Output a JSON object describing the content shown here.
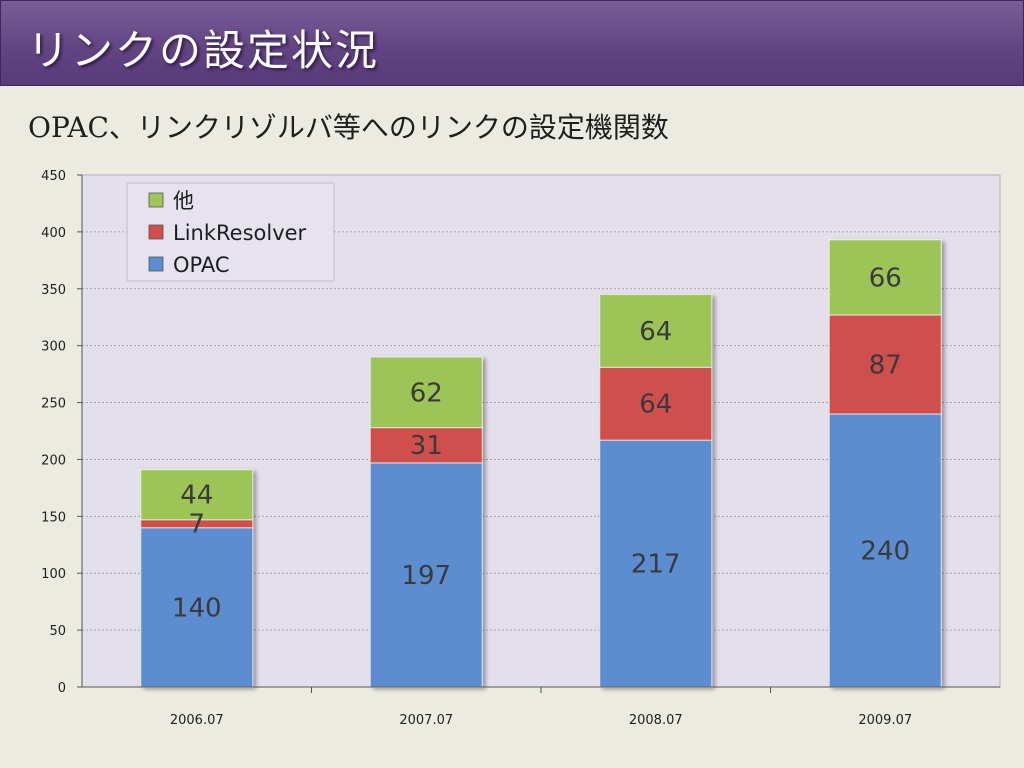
{
  "header": {
    "title": "リンクの設定状況"
  },
  "subtitle": "OPAC、リンクリゾルバ等へのリンクの設定機関数",
  "colors": {
    "OPAC": "#5b8dd1",
    "LinkResolver": "#cf4f4d",
    "other": "#9dc456",
    "plot_background": "#e3dfeb"
  },
  "chart_data": {
    "type": "bar",
    "stacked": true,
    "categories": [
      "2006.07",
      "2007.07",
      "2008.07",
      "2009.07"
    ],
    "series": [
      {
        "name": "OPAC",
        "values": [
          140,
          197,
          217,
          240
        ]
      },
      {
        "name": "LinkResolver",
        "values": [
          7,
          31,
          64,
          87
        ]
      },
      {
        "name": "他",
        "values": [
          44,
          62,
          64,
          66
        ]
      }
    ],
    "title": "",
    "xlabel": "",
    "ylabel": "",
    "ylim": [
      0,
      450
    ],
    "yticks": [
      "0",
      "50",
      "100",
      "150",
      "200",
      "250",
      "300",
      "350",
      "400",
      "450"
    ],
    "grid": true,
    "legend_position": "top-left",
    "legend_order": [
      "他",
      "LinkResolver",
      "OPAC"
    ]
  }
}
